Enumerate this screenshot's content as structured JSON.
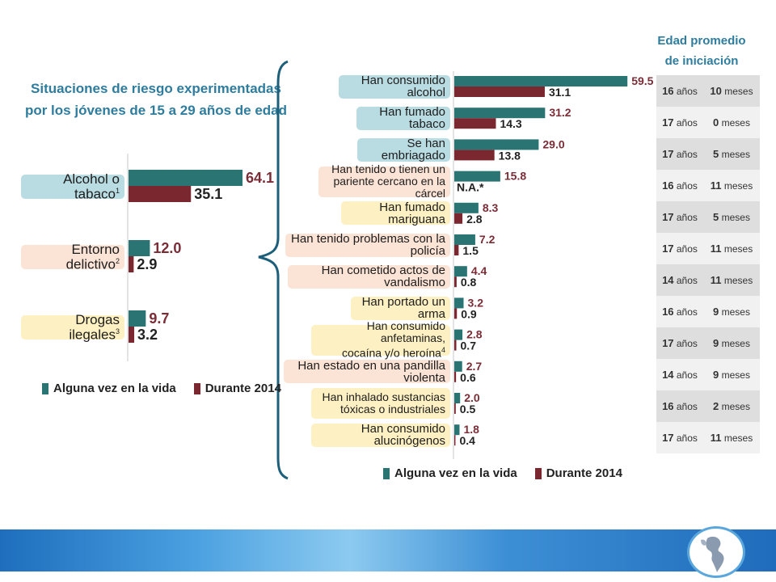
{
  "title_line1": "Situaciones de riesgo experimentadas",
  "title_line2": "por los jóvenes de 15 a 29 años de edad",
  "age_header_line1": "Edad promedio",
  "age_header_line2": "de iniciación",
  "colors": {
    "teal": "#2a7573",
    "maroon": "#7a2730",
    "value_maroon": "#7a2d36",
    "value_dark": "#222222"
  },
  "legend": {
    "series1": "Alguna vez en la vida",
    "series2": "Durante 2014"
  },
  "chart_data": [
    {
      "type": "bar",
      "orientation": "horizontal",
      "categories": [
        "Alcohol o tabaco",
        "Entorno delictivo",
        "Drogas ilegales"
      ],
      "category_superscripts": [
        "1",
        "2",
        "3"
      ],
      "series": [
        {
          "name": "Alguna vez en la vida",
          "values": [
            64.1,
            12.0,
            9.7
          ]
        },
        {
          "name": "Durante 2014",
          "values": [
            35.1,
            2.9,
            3.2
          ]
        }
      ],
      "value_labels": [
        [
          "64.1",
          "12.0",
          "9.7"
        ],
        [
          "35.1",
          "2.9",
          "3.2"
        ]
      ],
      "category_styles": [
        "teal",
        "peach",
        "yellow"
      ]
    },
    {
      "type": "bar",
      "orientation": "horizontal",
      "categories": [
        [
          "Han consumido alcohol"
        ],
        [
          "Han fumado tabaco"
        ],
        [
          "Se han embriagado"
        ],
        [
          "Han tenido o tienen un",
          "pariente cercano en la cárcel"
        ],
        [
          "Han fumado mariguana"
        ],
        [
          "Han tenido problemas con la policía"
        ],
        [
          "Han cometido actos de vandalismo"
        ],
        [
          "Han portado un arma"
        ],
        [
          "Han consumido anfetaminas,",
          "cocaína y/o heroína"
        ],
        [
          "Han estado en una pandilla violenta"
        ],
        [
          "Han inhalado sustancias",
          "tóxicas o industriales"
        ],
        [
          "Han consumido alucinógenos"
        ]
      ],
      "category_superscripts": [
        "",
        "",
        "",
        "",
        "",
        "",
        "",
        "",
        "4",
        "",
        "",
        ""
      ],
      "category_styles": [
        "teal",
        "teal",
        "teal",
        "peach",
        "yellow",
        "peach",
        "peach",
        "yellow",
        "yellow",
        "peach",
        "yellow",
        "yellow"
      ],
      "series": [
        {
          "name": "Alguna vez en la vida",
          "values": [
            59.5,
            31.2,
            29.0,
            15.8,
            8.3,
            7.2,
            4.4,
            3.2,
            2.8,
            2.7,
            2.0,
            1.8
          ]
        },
        {
          "name": "Durante 2014",
          "values": [
            31.1,
            14.3,
            13.8,
            null,
            2.8,
            1.5,
            0.8,
            0.9,
            0.7,
            0.6,
            0.5,
            0.4
          ]
        }
      ],
      "value_labels": [
        [
          "59.5",
          "31.2",
          "29.0",
          "15.8",
          "8.3",
          "7.2",
          "4.4",
          "3.2",
          "2.8",
          "2.7",
          "2.0",
          "1.8"
        ],
        [
          "31.1",
          "14.3",
          "13.8",
          "N.A.*",
          "2.8",
          "1.5",
          "0.8",
          "0.9",
          "0.7",
          "0.6",
          "0.5",
          "0.4"
        ]
      ]
    }
  ],
  "age_table": {
    "year_unit": "años",
    "month_unit": "meses",
    "rows": [
      {
        "years": "16",
        "months": "10"
      },
      {
        "years": "17",
        "months": "0"
      },
      {
        "years": "17",
        "months": "5"
      },
      {
        "years": "16",
        "months": "11"
      },
      {
        "years": "17",
        "months": "5"
      },
      {
        "years": "17",
        "months": "11"
      },
      {
        "years": "14",
        "months": "11"
      },
      {
        "years": "16",
        "months": "9"
      },
      {
        "years": "17",
        "months": "9"
      },
      {
        "years": "14",
        "months": "9"
      },
      {
        "years": "16",
        "months": "2"
      },
      {
        "years": "17",
        "months": "11"
      }
    ]
  }
}
